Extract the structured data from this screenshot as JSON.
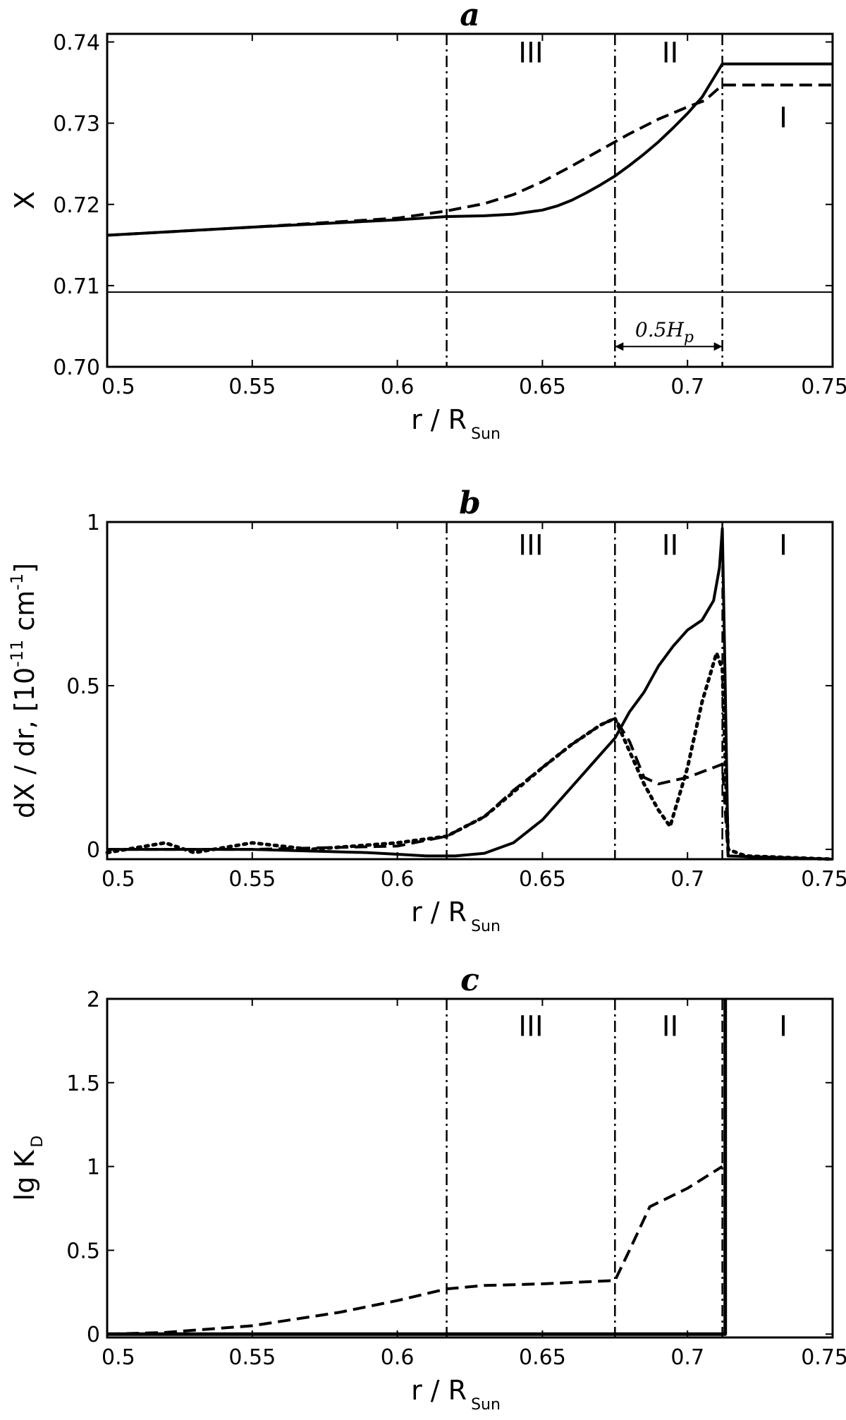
{
  "chart_data": [
    {
      "type": "line",
      "title": "a",
      "ylabel": "X",
      "xlabel": "r / R",
      "xlabel_sub": "Sun",
      "xlim": [
        0.5,
        0.75
      ],
      "ylim": [
        0.7,
        0.741
      ],
      "xticks": [
        "0.5",
        "0.55",
        "0.6",
        "0.65",
        "0.7",
        "0.75"
      ],
      "yticks": [
        "0.70",
        "0.71",
        "0.72",
        "0.73",
        "0.74"
      ],
      "region_boundaries": [
        0.617,
        0.675,
        0.712
      ],
      "regions": [
        {
          "label": "III",
          "x": 0.646,
          "y": 0.7375
        },
        {
          "label": "II",
          "x": 0.694,
          "y": 0.7375
        },
        {
          "label": "I",
          "x": 0.733,
          "y": 0.7295
        }
      ],
      "annotation": {
        "text": "0.5H",
        "sub": "p",
        "x_from": 0.675,
        "x_to": 0.712,
        "y": 0.7025
      },
      "series": [
        {
          "style": "solid",
          "width": 4,
          "x": [
            0.5,
            0.55,
            0.6,
            0.617,
            0.63,
            0.64,
            0.65,
            0.655,
            0.66,
            0.665,
            0.67,
            0.675,
            0.68,
            0.685,
            0.69,
            0.695,
            0.7,
            0.705,
            0.712,
            0.75
          ],
          "y": [
            0.7162,
            0.7172,
            0.7181,
            0.7185,
            0.7186,
            0.7188,
            0.7193,
            0.7198,
            0.7205,
            0.7214,
            0.7224,
            0.7235,
            0.7248,
            0.7262,
            0.7277,
            0.7294,
            0.7312,
            0.7332,
            0.7373,
            0.7373
          ]
        },
        {
          "style": "dashed",
          "width": 4,
          "x": [
            0.5,
            0.55,
            0.6,
            0.617,
            0.63,
            0.64,
            0.65,
            0.66,
            0.67,
            0.675,
            0.68,
            0.69,
            0.7,
            0.706,
            0.712,
            0.75
          ],
          "y": [
            0.7162,
            0.7172,
            0.7183,
            0.7192,
            0.7201,
            0.7212,
            0.7228,
            0.7247,
            0.7267,
            0.7277,
            0.7287,
            0.7305,
            0.732,
            0.7328,
            0.7347,
            0.7347
          ]
        },
        {
          "style": "solid",
          "width": 2,
          "x": [
            0.5,
            0.75
          ],
          "y": [
            0.7092,
            0.7092
          ]
        }
      ]
    },
    {
      "type": "line",
      "title": "b",
      "ylabel": "dX / dr, [10 cm ]",
      "ylabel_sup1": "-11",
      "ylabel_sup2": "-1",
      "xlabel": "r / R",
      "xlabel_sub": "Sun",
      "xlim": [
        0.5,
        0.75
      ],
      "ylim": [
        -0.03,
        1.0
      ],
      "xticks": [
        "0.5",
        "0.55",
        "0.6",
        "0.65",
        "0.7",
        "0.75"
      ],
      "yticks": [
        "0",
        "0.5",
        "1"
      ],
      "ytick_values": [
        0,
        0.5,
        1
      ],
      "region_boundaries": [
        0.617,
        0.675,
        0.712
      ],
      "regions": [
        {
          "label": "III",
          "x": 0.646,
          "y": 0.9
        },
        {
          "label": "II",
          "x": 0.694,
          "y": 0.9
        },
        {
          "label": "I",
          "x": 0.733,
          "y": 0.9
        }
      ],
      "series": [
        {
          "style": "solid",
          "width": 4,
          "x": [
            0.5,
            0.55,
            0.59,
            0.6,
            0.61,
            0.62,
            0.63,
            0.64,
            0.65,
            0.66,
            0.67,
            0.675,
            0.68,
            0.685,
            0.69,
            0.695,
            0.7,
            0.705,
            0.709,
            0.711,
            0.712,
            0.713,
            0.714,
            0.75
          ],
          "y": [
            0.0,
            0.0,
            -0.01,
            -0.015,
            -0.02,
            -0.02,
            -0.012,
            0.02,
            0.09,
            0.19,
            0.29,
            0.34,
            0.42,
            0.48,
            0.56,
            0.62,
            0.67,
            0.7,
            0.76,
            0.86,
            0.98,
            0.5,
            -0.02,
            -0.03
          ]
        },
        {
          "style": "dashed",
          "width": 4,
          "x": [
            0.5,
            0.55,
            0.6,
            0.617,
            0.63,
            0.64,
            0.65,
            0.66,
            0.67,
            0.675,
            0.68,
            0.685,
            0.69,
            0.7,
            0.712,
            0.714,
            0.75
          ],
          "y": [
            0.0,
            0.0,
            0.01,
            0.04,
            0.1,
            0.18,
            0.25,
            0.32,
            0.38,
            0.4,
            0.33,
            0.22,
            0.2,
            0.22,
            0.26,
            -0.02,
            -0.03
          ]
        },
        {
          "style": "dotted",
          "width": 5,
          "x": [
            0.5,
            0.52,
            0.53,
            0.55,
            0.57,
            0.6,
            0.617,
            0.63,
            0.65,
            0.66,
            0.67,
            0.675,
            0.68,
            0.685,
            0.69,
            0.694,
            0.7,
            0.705,
            0.71,
            0.712,
            0.714,
            0.72,
            0.75
          ],
          "y": [
            -0.01,
            0.02,
            -0.01,
            0.02,
            0.0,
            0.02,
            0.04,
            0.1,
            0.25,
            0.32,
            0.38,
            0.4,
            0.3,
            0.2,
            0.12,
            0.07,
            0.25,
            0.45,
            0.6,
            0.55,
            0.0,
            -0.02,
            -0.03
          ]
        }
      ]
    },
    {
      "type": "line",
      "title": "c",
      "ylabel": "lg K",
      "ylabel_sub": "D",
      "xlabel": "r / R",
      "xlabel_sub": "Sun",
      "xlim": [
        0.5,
        0.75
      ],
      "ylim": [
        -0.02,
        2.0
      ],
      "xticks": [
        "0.5",
        "0.55",
        "0.6",
        "0.65",
        "0.7",
        "0.75"
      ],
      "yticks": [
        "0",
        "0.5",
        "1",
        "1.5",
        "2"
      ],
      "ytick_values": [
        0,
        0.5,
        1,
        1.5,
        2
      ],
      "region_boundaries": [
        0.617,
        0.675,
        0.712
      ],
      "regions": [
        {
          "label": "III",
          "x": 0.646,
          "y": 1.78
        },
        {
          "label": "II",
          "x": 0.694,
          "y": 1.78
        },
        {
          "label": "I",
          "x": 0.733,
          "y": 1.78
        }
      ],
      "series": [
        {
          "style": "solid",
          "width": 5,
          "x": [
            0.5,
            0.713,
            0.713
          ],
          "y": [
            0.0,
            0.0,
            2.0
          ]
        },
        {
          "style": "dashed",
          "width": 4,
          "x": [
            0.5,
            0.52,
            0.55,
            0.58,
            0.6,
            0.617,
            0.63,
            0.65,
            0.675,
            0.68,
            0.687,
            0.7,
            0.712
          ],
          "y": [
            0.0,
            0.01,
            0.05,
            0.13,
            0.2,
            0.27,
            0.29,
            0.3,
            0.32,
            0.5,
            0.76,
            0.87,
            1.0
          ]
        }
      ]
    }
  ]
}
